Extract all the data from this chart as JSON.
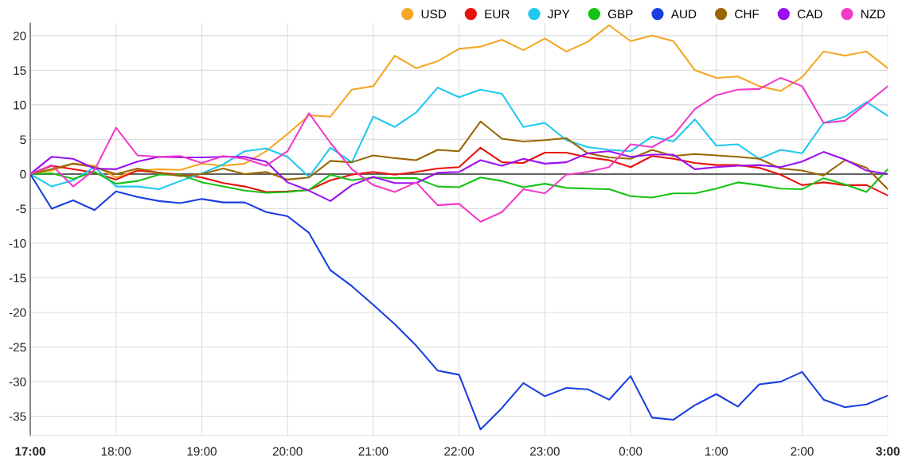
{
  "chart_data": {
    "type": "line",
    "x": [
      "2000-01-01T17:00",
      "2000-01-01T17:15",
      "2000-01-01T17:30",
      "2000-01-01T17:45",
      "2000-01-01T18:00",
      "2000-01-01T18:15",
      "2000-01-01T18:30",
      "2000-01-01T18:45",
      "2000-01-01T19:00",
      "2000-01-01T19:15",
      "2000-01-01T19:30",
      "2000-01-01T19:45",
      "2000-01-01T20:00",
      "2000-01-01T20:15",
      "2000-01-01T20:30",
      "2000-01-01T20:45",
      "2000-01-01T21:00",
      "2000-01-01T21:15",
      "2000-01-01T21:30",
      "2000-01-01T21:45",
      "2000-01-01T22:00",
      "2000-01-01T22:15",
      "2000-01-01T22:30",
      "2000-01-01T22:45",
      "2000-01-01T23:00",
      "2000-01-01T23:15",
      "2000-01-01T23:30",
      "2000-01-01T23:45",
      "2000-01-02T00:00",
      "2000-01-02T00:15",
      "2000-01-02T00:30",
      "2000-01-02T00:45",
      "2000-01-02T01:00",
      "2000-01-02T01:15",
      "2000-01-02T01:30",
      "2000-01-02T01:45",
      "2000-01-02T02:00",
      "2000-01-02T02:15",
      "2000-01-02T02:30",
      "2000-01-02T02:45",
      "2000-01-02T03:00"
    ],
    "series": [
      {
        "name": "USD",
        "color": "#f5a623",
        "values": [
          0,
          0.5,
          1.5,
          1.2,
          -0.5,
          0.5,
          0.7,
          0.6,
          1.5,
          1.2,
          1.5,
          3.3,
          5.8,
          8.5,
          8.3,
          12.2,
          12.7,
          17.1,
          15.3,
          16.3,
          18.1,
          18.4,
          19.4,
          17.9,
          19.6,
          17.7,
          19.1,
          21.5,
          19.2,
          20,
          19.2,
          15,
          13.9,
          14.1,
          12.7,
          12,
          14,
          17.7,
          17.1,
          17.7,
          15.3
        ]
      },
      {
        "name": "EUR",
        "color": "#e8120c",
        "values": [
          0,
          1.2,
          0.7,
          0.2,
          -0.8,
          0.5,
          0.2,
          -0.1,
          -0.5,
          -1.3,
          -1.8,
          -2.6,
          -2.5,
          -2.3,
          -0.9,
          -0.1,
          0.3,
          -0.1,
          0.3,
          0.8,
          1,
          3.8,
          1.7,
          1.6,
          3.1,
          3.1,
          2.4,
          2,
          1,
          2.6,
          2.2,
          1.6,
          1.3,
          1.3,
          0.9,
          -0.1,
          -1.6,
          -1.2,
          -1.6,
          -1.6,
          -3.1
        ]
      },
      {
        "name": "JPY",
        "color": "#1ec8f0",
        "values": [
          0,
          -1.8,
          -0.9,
          1,
          -1.8,
          -1.8,
          -2.2,
          -1,
          0.1,
          1.4,
          3.3,
          3.7,
          2.5,
          -0.4,
          3.8,
          1.7,
          8.3,
          6.8,
          8.9,
          12.5,
          11.1,
          12.2,
          11.6,
          6.8,
          7.4,
          4.9,
          3.9,
          3.5,
          3.3,
          5.4,
          4.7,
          7.9,
          4.1,
          4.3,
          2.2,
          3.5,
          3,
          7.4,
          8.3,
          10.4,
          8.4
        ]
      },
      {
        "name": "GBP",
        "color": "#17c217",
        "values": [
          0,
          0.1,
          -0.7,
          0.3,
          -1.4,
          -1,
          -0.1,
          -0.1,
          -1.2,
          -1.8,
          -2.4,
          -2.7,
          -2.6,
          -2.3,
          -0.1,
          -0.9,
          -0.5,
          -0.6,
          -0.6,
          -1.8,
          -1.9,
          -0.5,
          -1,
          -1.9,
          -1.4,
          -2,
          -2.1,
          -2.2,
          -3.2,
          -3.4,
          -2.8,
          -2.8,
          -2.1,
          -1.2,
          -1.6,
          -2.1,
          -2.2,
          -0.6,
          -1.5,
          -2.6,
          0.7
        ]
      },
      {
        "name": "AUD",
        "color": "#1a3fe0",
        "values": [
          0,
          -5,
          -3.8,
          -5.2,
          -2.5,
          -3.3,
          -3.9,
          -4.2,
          -3.6,
          -4.1,
          -4.1,
          -5.5,
          -6.1,
          -8.5,
          -13.9,
          -16.2,
          -18.9,
          -21.7,
          -24.8,
          -28.4,
          -29,
          -36.9,
          -33.8,
          -30.2,
          -32.1,
          -30.9,
          -31.1,
          -32.6,
          -29.2,
          -35.2,
          -35.5,
          -33.4,
          -31.8,
          -33.6,
          -30.4,
          -30,
          -28.6,
          -32.6,
          -33.7,
          -33.3,
          -32
        ]
      },
      {
        "name": "CHF",
        "color": "#996600",
        "values": [
          0,
          0.7,
          1.5,
          1,
          0,
          0.8,
          0.2,
          -0.3,
          0,
          0.8,
          0,
          0.3,
          -0.8,
          -0.5,
          1.9,
          1.7,
          2.7,
          2.3,
          2,
          3.5,
          3.3,
          7.6,
          5.1,
          4.7,
          4.9,
          5.2,
          3,
          2.4,
          2.2,
          3.5,
          2.6,
          2.9,
          2.7,
          2.5,
          2.2,
          0.8,
          0.5,
          -0.2,
          2,
          0.9,
          -2.2
        ]
      },
      {
        "name": "CAD",
        "color": "#9b10f0",
        "values": [
          0,
          2.5,
          2.2,
          0.8,
          0.7,
          1.8,
          2.5,
          2.4,
          2.4,
          2.5,
          2.5,
          1.8,
          -1.2,
          -2.4,
          -3.9,
          -1.6,
          -0.4,
          -1.3,
          -1.3,
          0.2,
          0.3,
          2,
          1.2,
          2.2,
          1.5,
          1.7,
          3,
          3.3,
          2.5,
          2.8,
          2.8,
          0.7,
          1,
          1.2,
          1.3,
          1,
          1.8,
          3.2,
          2.1,
          0.5,
          0
        ]
      },
      {
        "name": "NZD",
        "color": "#f03cc8",
        "values": [
          0,
          1.3,
          -1.8,
          0.6,
          6.7,
          2.7,
          2.5,
          2.6,
          1.6,
          2.6,
          2.2,
          1.2,
          3.3,
          8.8,
          4.5,
          0.7,
          -1.6,
          -2.6,
          -1.2,
          -4.5,
          -4.3,
          -6.9,
          -5.5,
          -2.2,
          -2.8,
          -0.1,
          0.3,
          1,
          4.3,
          3.9,
          5.6,
          9.4,
          11.4,
          12.2,
          12.3,
          13.9,
          12.7,
          7.4,
          7.7,
          10.2,
          12.7
        ]
      }
    ],
    "xlim": [
      "2000-01-01T17:00",
      "2000-01-02T03:00"
    ],
    "xticks": [
      {
        "value": "2000-01-01T17:00",
        "label": "17:00"
      },
      {
        "value": "2000-01-01T18:00",
        "label": "18:00"
      },
      {
        "value": "2000-01-01T19:00",
        "label": "19:00"
      },
      {
        "value": "2000-01-01T20:00",
        "label": "20:00"
      },
      {
        "value": "2000-01-01T21:00",
        "label": "21:00"
      },
      {
        "value": "2000-01-01T22:00",
        "label": "22:00"
      },
      {
        "value": "2000-01-01T23:00",
        "label": "23:00"
      },
      {
        "value": "2000-01-02T00:00",
        "label": "0:00"
      },
      {
        "value": "2000-01-02T01:00",
        "label": "1:00"
      },
      {
        "value": "2000-01-02T02:00",
        "label": "2:00"
      },
      {
        "value": "2000-01-02T03:00",
        "label": "3:00"
      }
    ],
    "ylim": [
      -37.8,
      21.8
    ],
    "yticks": [
      -35,
      -30,
      -25,
      -20,
      -15,
      -10,
      -5,
      0,
      5,
      10,
      15,
      20
    ],
    "ref_lines": [
      {
        "axis": "y",
        "value": 0,
        "color": "#333333"
      }
    ],
    "grid": true,
    "legend": "top right",
    "marker": "none",
    "line_style": "solid"
  }
}
